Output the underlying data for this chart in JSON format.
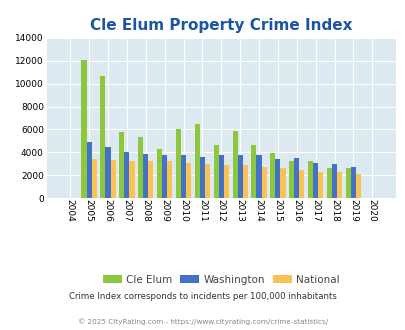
{
  "title": "Cle Elum Property Crime Index",
  "years": [
    2004,
    2005,
    2006,
    2007,
    2008,
    2009,
    2010,
    2011,
    2012,
    2013,
    2014,
    2015,
    2016,
    2017,
    2018,
    2019,
    2020
  ],
  "cle_elum": [
    0,
    12100,
    10700,
    5800,
    5300,
    4250,
    6000,
    6500,
    4600,
    5900,
    4600,
    3900,
    3250,
    3200,
    2600,
    2600,
    0
  ],
  "washington": [
    0,
    4900,
    4500,
    4050,
    3850,
    3800,
    3750,
    3600,
    3800,
    3750,
    3750,
    3450,
    3500,
    3100,
    3000,
    2700,
    0
  ],
  "national": [
    0,
    3450,
    3300,
    3250,
    3250,
    3200,
    3050,
    2950,
    2900,
    2900,
    2750,
    2650,
    2450,
    2300,
    2250,
    2100,
    0
  ],
  "cle_elum_color": "#8dc63f",
  "washington_color": "#4472c4",
  "national_color": "#fac255",
  "bg_color": "#dde9f0",
  "ylim": [
    0,
    14000
  ],
  "yticks": [
    0,
    2000,
    4000,
    6000,
    8000,
    10000,
    12000,
    14000
  ],
  "title_color": "#1a56a5",
  "title_fontsize": 11,
  "legend_labels": [
    "Cle Elum",
    "Washington",
    "National"
  ],
  "footnote1": "Crime Index corresponds to incidents per 100,000 inhabitants",
  "footnote2": "© 2025 CityRating.com - https://www.cityrating.com/crime-statistics/",
  "footnote1_color": "#333333",
  "footnote2_color": "#888888",
  "bar_width": 0.27
}
